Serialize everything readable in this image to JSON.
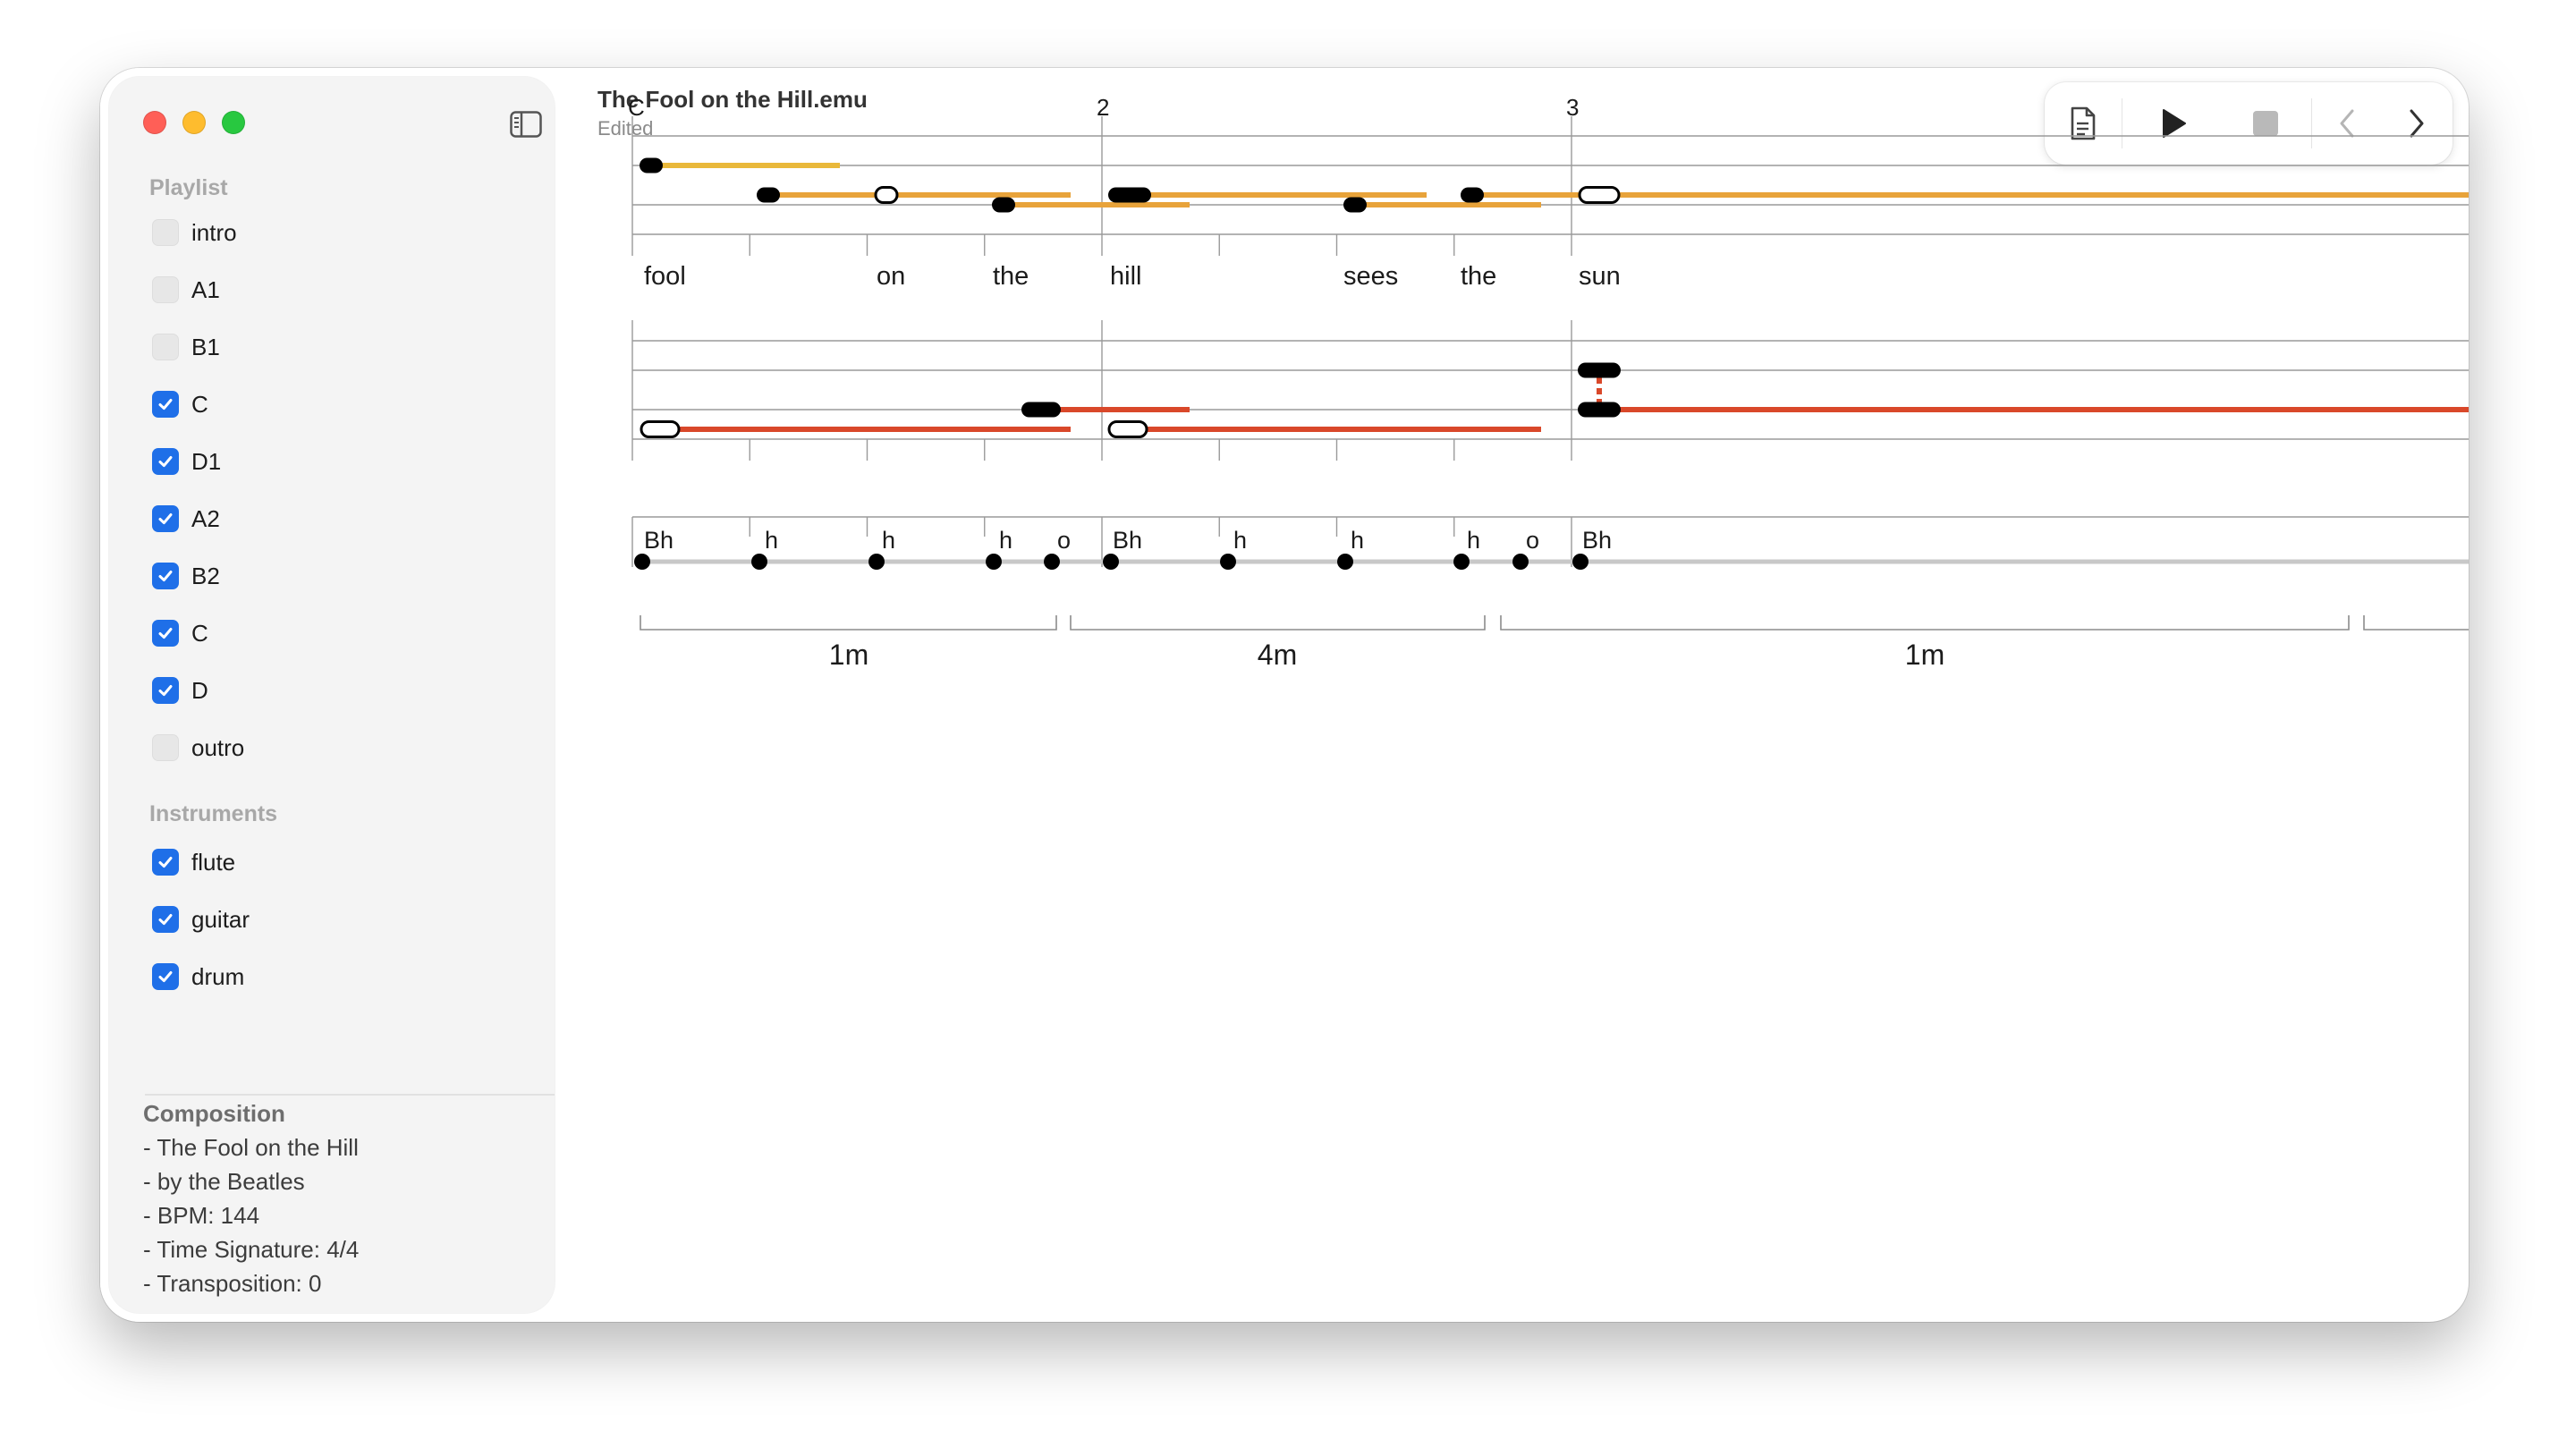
{
  "window": {
    "title": "The Fool on the Hill.emu",
    "subtitle": "Edited"
  },
  "sidebar": {
    "playlist_header": "Playlist",
    "playlist": [
      {
        "label": "intro",
        "checked": false
      },
      {
        "label": "A1",
        "checked": false
      },
      {
        "label": "B1",
        "checked": false
      },
      {
        "label": "C",
        "checked": true
      },
      {
        "label": "D1",
        "checked": true
      },
      {
        "label": "A2",
        "checked": true
      },
      {
        "label": "B2",
        "checked": true
      },
      {
        "label": "C",
        "checked": true
      },
      {
        "label": "D",
        "checked": true
      },
      {
        "label": "outro",
        "checked": false
      }
    ],
    "instruments_header": "Instruments",
    "instruments": [
      {
        "label": "flute",
        "checked": true
      },
      {
        "label": "guitar",
        "checked": true
      },
      {
        "label": "drum",
        "checked": true
      }
    ],
    "composition": {
      "title": "Composition",
      "lines": [
        "- The Fool on the Hill",
        "- by the Beatles",
        "- BPM: 144",
        "- Time Signature: 4/4",
        "- Transposition: 0"
      ]
    }
  },
  "toolbar": {
    "icons": [
      "document-icon",
      "play-icon",
      "stop-icon",
      "chevron-left-icon",
      "chevron-right-icon"
    ]
  },
  "score": {
    "measure_labels": [
      "C",
      "2",
      "3"
    ],
    "lyrics": [
      "fool",
      "on",
      "the",
      "hill",
      "sees",
      "the",
      "sun"
    ],
    "drum_hits": [
      "Bh",
      "h",
      "h",
      "h",
      "o",
      "Bh",
      "h",
      "h",
      "h",
      "o",
      "Bh"
    ],
    "bracket_labels": [
      "1m",
      "4m",
      "1m"
    ]
  },
  "colors": {
    "accent": "#1f6fe8",
    "flute_line": "#e8a33a",
    "flute_first": "#e9b83a",
    "guitar_line": "#d9482a",
    "drum_line": "#c8c8c8",
    "staff": "#9a9a9a"
  }
}
